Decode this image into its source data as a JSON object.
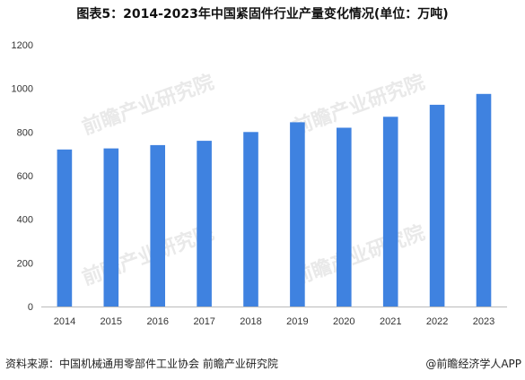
{
  "title": "图表5：2014-2023年中国紧固件行业产量变化情况(单位：万吨)",
  "source_text": "资料来源：中国机械通用零部件工业协会 前瞻产业研究院",
  "brand_text": "@前瞻经济学人APP",
  "watermark_text": "前瞻产业研究院",
  "colors": {
    "bar": "#3f82e0",
    "axis": "#bbbbbb"
  },
  "chart_data": {
    "type": "bar",
    "title": "图表5：2014-2023年中国紧固件行业产量变化情况(单位：万吨)",
    "xlabel": "",
    "ylabel": "",
    "categories": [
      "2014",
      "2015",
      "2016",
      "2017",
      "2018",
      "2019",
      "2020",
      "2021",
      "2022",
      "2023"
    ],
    "values": [
      720,
      725,
      740,
      760,
      800,
      845,
      820,
      870,
      925,
      975
    ],
    "ylim": [
      0,
      1200
    ],
    "yticks": [
      0,
      200,
      400,
      600,
      800,
      1000,
      1200
    ],
    "grid": false,
    "legend": "none"
  }
}
